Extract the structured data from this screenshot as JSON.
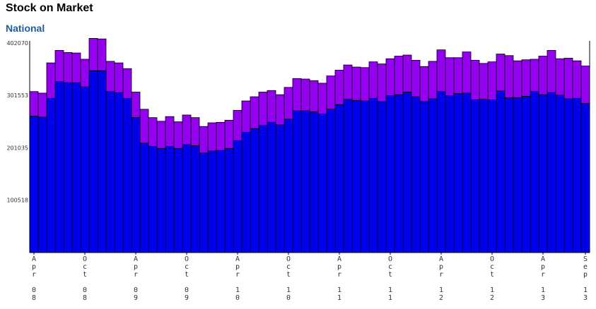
{
  "header": {
    "title": "Stock on Market",
    "subtitle": "National"
  },
  "chart_data": {
    "type": "bar",
    "stacked": true,
    "title": "Stock on Market",
    "subtitle": "National",
    "xlabel": "",
    "ylabel": "",
    "ylim": [
      0,
      402070
    ],
    "yticks": [
      100518,
      201035,
      301553,
      402070
    ],
    "grid": false,
    "legend": "none",
    "x_tick_labels": [
      {
        "index": 0,
        "label": "Apr 08"
      },
      {
        "index": 6,
        "label": "Oct 08"
      },
      {
        "index": 12,
        "label": "Apr 09"
      },
      {
        "index": 18,
        "label": "Oct 09"
      },
      {
        "index": 24,
        "label": "Apr 10"
      },
      {
        "index": 30,
        "label": "Oct 10"
      },
      {
        "index": 36,
        "label": "Apr 11"
      },
      {
        "index": 42,
        "label": "Oct 11"
      },
      {
        "index": 48,
        "label": "Apr 12"
      },
      {
        "index": 54,
        "label": "Oct 12"
      },
      {
        "index": 60,
        "label": "Apr 13"
      },
      {
        "index": 65,
        "label": "Sep 13"
      }
    ],
    "categories": [
      "Apr 08",
      "May 08",
      "Jun 08",
      "Jul 08",
      "Aug 08",
      "Sep 08",
      "Oct 08",
      "Nov 08",
      "Dec 08",
      "Jan 09",
      "Feb 09",
      "Mar 09",
      "Apr 09",
      "May 09",
      "Jun 09",
      "Jul 09",
      "Aug 09",
      "Sep 09",
      "Oct 09",
      "Nov 09",
      "Dec 09",
      "Jan 10",
      "Feb 10",
      "Mar 10",
      "Apr 10",
      "May 10",
      "Jun 10",
      "Jul 10",
      "Aug 10",
      "Sep 10",
      "Oct 10",
      "Nov 10",
      "Dec 10",
      "Jan 11",
      "Feb 11",
      "Mar 11",
      "Apr 11",
      "May 11",
      "Jun 11",
      "Jul 11",
      "Aug 11",
      "Sep 11",
      "Oct 11",
      "Nov 11",
      "Dec 11",
      "Jan 12",
      "Feb 12",
      "Mar 12",
      "Apr 12",
      "May 12",
      "Jun 12",
      "Jul 12",
      "Aug 12",
      "Sep 12",
      "Oct 12",
      "Nov 12",
      "Dec 12",
      "Jan 13",
      "Feb 13",
      "Mar 13",
      "Apr 13",
      "May 13",
      "Jun 13",
      "Jul 13",
      "Aug 13",
      "Sep 13"
    ],
    "series": [
      {
        "color": "#0000ee",
        "values": [
          262000,
          260000,
          296000,
          328000,
          326000,
          326000,
          318000,
          349000,
          349000,
          309000,
          307000,
          296000,
          259000,
          210000,
          204000,
          200000,
          204000,
          200000,
          207000,
          205000,
          191000,
          195000,
          196000,
          200000,
          215000,
          231000,
          238000,
          244000,
          250000,
          245000,
          256000,
          272000,
          272000,
          270000,
          266000,
          275000,
          284000,
          294000,
          292000,
          291000,
          296000,
          290000,
          301000,
          303000,
          308000,
          299000,
          290000,
          295000,
          309000,
          301000,
          305000,
          306000,
          293000,
          294000,
          293000,
          310000,
          297000,
          297000,
          300000,
          309000,
          303000,
          307000,
          302000,
          295000,
          296000,
          286000
        ]
      },
      {
        "color": "#9400f0",
        "values": [
          47000,
          46000,
          68000,
          60000,
          58000,
          57000,
          53000,
          62000,
          61000,
          58000,
          57000,
          57000,
          49000,
          65000,
          55000,
          52000,
          57000,
          51000,
          57000,
          54000,
          51000,
          54000,
          54000,
          54000,
          58000,
          60000,
          61000,
          64000,
          61000,
          58000,
          61000,
          62000,
          61000,
          60000,
          59000,
          64000,
          66000,
          66000,
          64000,
          64000,
          70000,
          72000,
          71000,
          74000,
          71000,
          70000,
          67000,
          72000,
          80000,
          73000,
          69000,
          79000,
          76000,
          69000,
          73000,
          71000,
          81000,
          71000,
          70000,
          62000,
          74000,
          81000,
          70000,
          78000,
          72000,
          72000
        ]
      }
    ]
  },
  "axis_labels": [
    {
      "key": "t0",
      "text": "Apr 08"
    },
    {
      "key": "t1",
      "text": "Oct 08"
    },
    {
      "key": "t2",
      "text": "Apr 09"
    },
    {
      "key": "t3",
      "text": "Oct 09"
    },
    {
      "key": "t4",
      "text": "Apr 10"
    },
    {
      "key": "t5",
      "text": "Oct 10"
    },
    {
      "key": "t6",
      "text": "Apr 11"
    },
    {
      "key": "t7",
      "text": "Oct 11"
    },
    {
      "key": "t8",
      "text": "Apr 12"
    },
    {
      "key": "t9",
      "text": "Oct 12"
    },
    {
      "key": "t10",
      "text": "Apr 13"
    },
    {
      "key": "t11",
      "text": "Sep 13"
    }
  ]
}
